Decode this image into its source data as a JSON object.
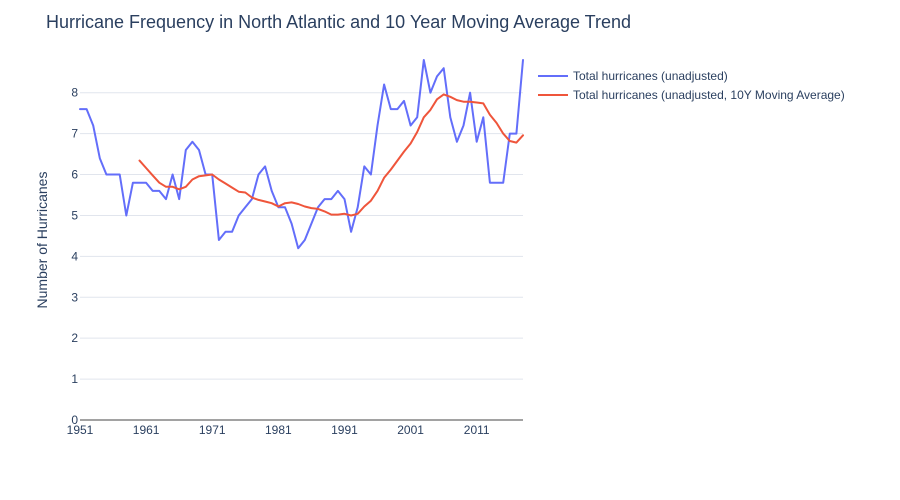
{
  "chart_data": {
    "type": "line",
    "title": "Hurricane Frequency in North Atlantic and 10 Year Moving Average Trend",
    "xlabel": "",
    "ylabel": "Number of Hurricanes",
    "xlim": [
      1951,
      2018
    ],
    "ylim": [
      0,
      8.8
    ],
    "x_ticks": [
      "1951",
      "1961",
      "1971",
      "1981",
      "1991",
      "2001",
      "2011"
    ],
    "y_ticks": [
      "0",
      "1",
      "2",
      "3",
      "4",
      "5",
      "6",
      "7",
      "8"
    ],
    "grid": true,
    "legend_position": "top-right",
    "series": [
      {
        "name": "Total hurricanes (unadjusted)",
        "color": "#636efa",
        "x": [
          1951,
          1952,
          1953,
          1954,
          1955,
          1956,
          1957,
          1958,
          1959,
          1960,
          1961,
          1962,
          1963,
          1964,
          1965,
          1966,
          1967,
          1968,
          1969,
          1970,
          1971,
          1972,
          1973,
          1974,
          1975,
          1976,
          1977,
          1978,
          1979,
          1980,
          1981,
          1982,
          1983,
          1984,
          1985,
          1986,
          1987,
          1988,
          1989,
          1990,
          1991,
          1992,
          1993,
          1994,
          1995,
          1996,
          1997,
          1998,
          1999,
          2000,
          2001,
          2002,
          2003,
          2004,
          2005,
          2006,
          2007,
          2008,
          2009,
          2010,
          2011,
          2012,
          2013,
          2014,
          2015,
          2016,
          2017,
          2018
        ],
        "y": [
          7.6,
          7.6,
          7.2,
          6.4,
          6.0,
          6.0,
          6.0,
          5.0,
          5.8,
          5.8,
          5.8,
          5.6,
          5.6,
          5.4,
          6.0,
          5.4,
          6.6,
          6.8,
          6.6,
          6.0,
          6.0,
          4.4,
          4.6,
          4.6,
          5.0,
          5.2,
          5.4,
          6.0,
          6.2,
          5.6,
          5.2,
          5.2,
          4.8,
          4.2,
          4.4,
          4.8,
          5.2,
          5.4,
          5.4,
          5.6,
          5.4,
          4.6,
          5.2,
          6.2,
          6.0,
          7.2,
          8.2,
          7.6,
          7.6,
          7.8,
          7.2,
          7.4,
          8.8,
          8.0,
          8.4,
          8.6,
          7.4,
          6.8,
          7.2,
          8.0,
          6.8,
          7.4,
          5.8,
          5.8,
          5.8,
          7.0,
          7.0,
          8.8
        ]
      },
      {
        "name": "Total hurricanes (unadjusted, 10Y Moving Average)",
        "color": "#ef553b",
        "x": [
          1960,
          1961,
          1962,
          1963,
          1964,
          1965,
          1966,
          1967,
          1968,
          1969,
          1970,
          1971,
          1972,
          1973,
          1974,
          1975,
          1976,
          1977,
          1978,
          1979,
          1980,
          1981,
          1982,
          1983,
          1984,
          1985,
          1986,
          1987,
          1988,
          1989,
          1990,
          1991,
          1992,
          1993,
          1994,
          1995,
          1996,
          1997,
          1998,
          1999,
          2000,
          2001,
          2002,
          2003,
          2004,
          2005,
          2006,
          2007,
          2008,
          2009,
          2010,
          2011,
          2012,
          2013,
          2014,
          2015,
          2016,
          2017,
          2018
        ],
        "y": [
          6.34,
          6.16,
          5.98,
          5.8,
          5.7,
          5.7,
          5.64,
          5.7,
          5.88,
          5.96,
          5.98,
          6.0,
          5.88,
          5.78,
          5.68,
          5.58,
          5.56,
          5.44,
          5.38,
          5.34,
          5.3,
          5.22,
          5.3,
          5.32,
          5.28,
          5.22,
          5.18,
          5.16,
          5.1,
          5.02,
          5.02,
          5.04,
          5.0,
          5.04,
          5.22,
          5.36,
          5.6,
          5.92,
          6.12,
          6.34,
          6.56,
          6.76,
          7.04,
          7.4,
          7.58,
          7.84,
          7.96,
          7.9,
          7.82,
          7.78,
          7.78,
          7.76,
          7.74,
          7.46,
          7.26,
          7.0,
          6.82,
          6.78,
          6.96
        ]
      }
    ]
  }
}
